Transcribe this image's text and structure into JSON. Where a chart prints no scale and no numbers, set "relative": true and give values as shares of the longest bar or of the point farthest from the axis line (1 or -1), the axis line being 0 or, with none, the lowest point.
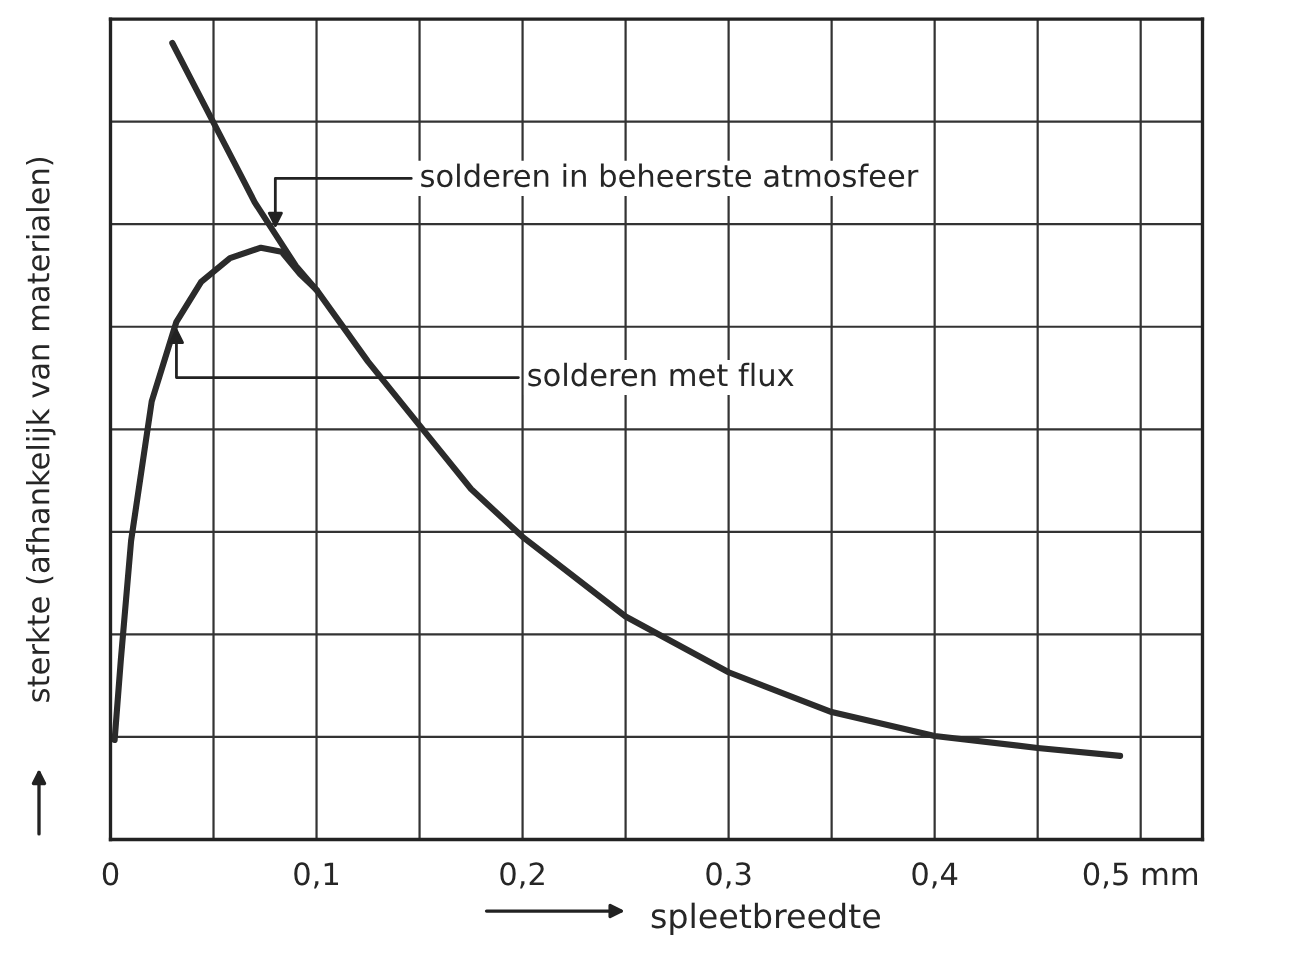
{
  "chart_data": {
    "type": "line",
    "xlabel": "spleetbreedte",
    "ylabel": "sterkte (afhankelijk van materialen)",
    "relative": true,
    "grid": true,
    "marker": "none",
    "line_style": "solid",
    "xlim": [
      0,
      0.53
    ],
    "xticks": [
      0,
      {
        "value": 0.05,
        "label": null
      },
      {
        "value": 0.1,
        "label": "0,1"
      },
      {
        "value": 0.15,
        "label": null
      },
      {
        "value": 0.2,
        "label": "0,2"
      },
      {
        "value": 0.25,
        "label": null
      },
      {
        "value": 0.3,
        "label": "0,3"
      },
      {
        "value": 0.35,
        "label": null
      },
      {
        "value": 0.4,
        "label": "0,4"
      },
      {
        "value": 0.45,
        "label": null
      },
      {
        "value": 0.5,
        "label": "0,5 mm"
      }
    ],
    "series": [
      {
        "color": "#2b2b2b",
        "x": [
          0.03,
          0.04,
          0.05,
          0.06,
          0.07,
          0.08,
          0.09,
          0.1,
          0.125,
          0.15,
          0.175,
          0.2,
          0.25,
          0.3,
          0.35,
          0.4,
          0.45,
          0.49
        ],
        "values": [
          1.0,
          0.95,
          0.9,
          0.85,
          0.8,
          0.76,
          0.72,
          0.69,
          0.6,
          0.52,
          0.44,
          0.38,
          0.28,
          0.21,
          0.16,
          0.13,
          0.115,
          0.105
        ]
      },
      {
        "color": "#2b2b2b",
        "x": [
          0.002,
          0.005,
          0.01,
          0.02,
          0.032,
          0.044,
          0.058,
          0.073,
          0.083,
          0.092,
          0.1
        ],
        "values": [
          0.125,
          0.225,
          0.375,
          0.55,
          0.65,
          0.7,
          0.73,
          0.743,
          0.738,
          0.71,
          0.69
        ]
      }
    ],
    "annotations": [
      {
        "text": "solderen in beheerste atmosfeer",
        "x": 0.08,
        "y": 0.76
      },
      {
        "text": "solderen met flux",
        "x": 0.032,
        "y": 0.65
      }
    ]
  }
}
